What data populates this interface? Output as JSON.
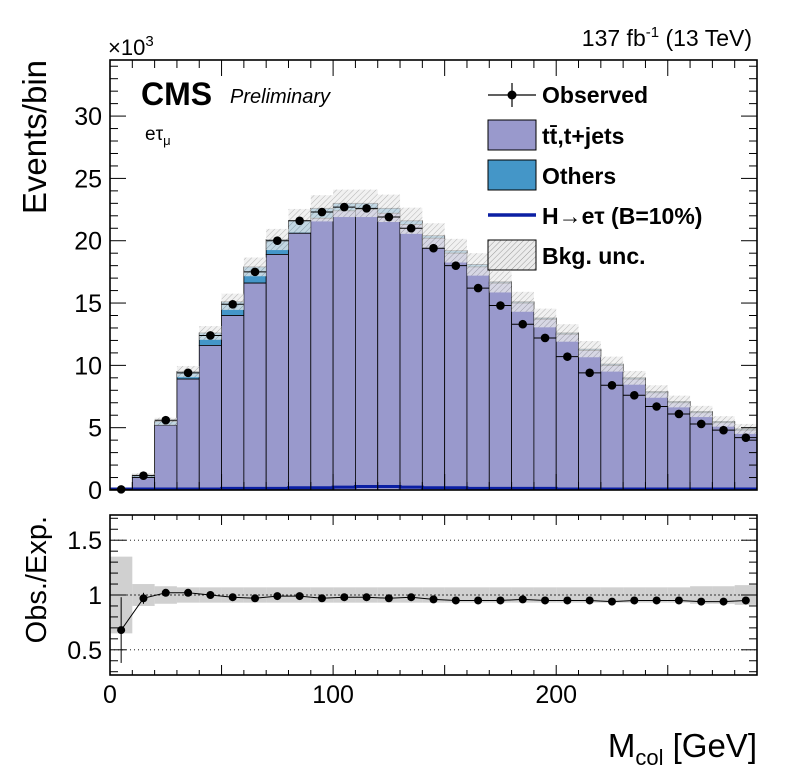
{
  "header": {
    "lumi": "137 fb",
    "lumi_sup": "-1",
    "energy": " (13 TeV)",
    "multiplier_prefix": "×10",
    "multiplier_exp": "3"
  },
  "labels": {
    "experiment": "CMS",
    "status": "Preliminary",
    "channel_base": "eτ",
    "channel_sub": "μ"
  },
  "legend": {
    "observed": "Observed",
    "ttbar": "tt̄,t+jets",
    "others": "Others",
    "signal": "H→eτ (B=10%)",
    "unc": "Bkg. unc."
  },
  "colors": {
    "ttbar": "#9999cc",
    "others": "#4496c8",
    "signal": "#0b1fa3",
    "unc": "#c8c8c8",
    "data": "#000000"
  },
  "chart_data": [
    {
      "type": "bar",
      "ylabel": "Events/bin",
      "ylim": [
        0,
        34.5
      ],
      "yticks": [
        0,
        5,
        10,
        15,
        20,
        25,
        30
      ],
      "xlim": [
        0,
        290
      ],
      "bin_width": 10,
      "bin_edges_start": 0,
      "series": [
        {
          "name": "tt̄,t+jets",
          "values": [
            0.05,
            1.0,
            5.2,
            8.9,
            11.6,
            14.0,
            16.6,
            18.9,
            20.6,
            21.8,
            22.4,
            22.5,
            22.2,
            21.3,
            20.2,
            19.0,
            17.9,
            16.6,
            15.0,
            13.7,
            12.5,
            11.2,
            10.0,
            8.9,
            7.8,
            7.0,
            6.2,
            5.4,
            4.8
          ]
        },
        {
          "name": "Others",
          "values": [
            0.05,
            0.2,
            0.3,
            0.6,
            1.0,
            1.1,
            1.3,
            1.2,
            1.0,
            0.8,
            0.6,
            0.5,
            0.4,
            0.3,
            0.2,
            0.2,
            0.2,
            0.1,
            0.1,
            0.1,
            0.1,
            0.1,
            0.1,
            0.1,
            0.1,
            0.1,
            0.1,
            0.1,
            0.1
          ]
        },
        {
          "name": "H→eτ (B=10%)",
          "values": [
            0.0,
            0.0,
            0.0,
            0.0,
            0.0,
            0.05,
            0.05,
            0.05,
            0.1,
            0.1,
            0.15,
            0.2,
            0.2,
            0.15,
            0.1,
            0.1,
            0.05,
            0.05,
            0.05,
            0.05,
            0.0,
            0.0,
            0.0,
            0.0,
            0.0,
            0.0,
            0.0,
            0.0,
            0.0
          ]
        },
        {
          "name": "Observed",
          "values": [
            0.05,
            1.15,
            5.6,
            9.4,
            12.4,
            14.9,
            17.5,
            20.0,
            21.6,
            22.3,
            22.7,
            22.6,
            21.9,
            21.0,
            19.4,
            18.0,
            16.2,
            14.8,
            13.3,
            12.2,
            10.7,
            9.4,
            8.4,
            7.6,
            6.7,
            6.1,
            5.3,
            4.8,
            4.2
          ]
        }
      ],
      "uncertainty": [
        0.1,
        0.15,
        0.3,
        0.45,
        0.55,
        0.65,
        0.75,
        0.85,
        0.95,
        1.05,
        1.1,
        1.1,
        1.1,
        1.05,
        1.0,
        0.95,
        0.9,
        0.85,
        0.8,
        0.75,
        0.7,
        0.65,
        0.6,
        0.55,
        0.5,
        0.47,
        0.45,
        0.42,
        0.4
      ]
    },
    {
      "type": "scatter",
      "xlabel": "M",
      "xlabel_sub": "col",
      "xlabel_unit": " [GeV]",
      "ylabel": "Obs./Exp.",
      "ylim": [
        0.27,
        1.73
      ],
      "yticks": [
        0.5,
        1,
        1.5
      ],
      "ytick_labels": [
        "0.5",
        "1",
        "1.5"
      ],
      "xticks": [
        0,
        100,
        200
      ],
      "xtick_labels": [
        "0",
        "100",
        "200"
      ],
      "ratio": [
        0.68,
        0.97,
        1.02,
        1.02,
        1.0,
        0.98,
        0.97,
        0.99,
        0.99,
        0.97,
        0.98,
        0.98,
        0.97,
        0.98,
        0.96,
        0.95,
        0.95,
        0.95,
        0.96,
        0.95,
        0.95,
        0.95,
        0.94,
        0.95,
        0.95,
        0.95,
        0.94,
        0.94,
        0.95
      ],
      "ratio_err": [
        0.3,
        0.05,
        0.02,
        0.015,
        0.01,
        0.01,
        0.01,
        0.01,
        0.01,
        0.01,
        0.01,
        0.01,
        0.01,
        0.01,
        0.01,
        0.01,
        0.01,
        0.01,
        0.01,
        0.01,
        0.01,
        0.015,
        0.015,
        0.015,
        0.015,
        0.015,
        0.02,
        0.02,
        0.02
      ],
      "unc_band": [
        0.35,
        0.1,
        0.08,
        0.07,
        0.07,
        0.07,
        0.07,
        0.07,
        0.07,
        0.07,
        0.07,
        0.07,
        0.07,
        0.07,
        0.07,
        0.07,
        0.07,
        0.07,
        0.07,
        0.07,
        0.07,
        0.07,
        0.07,
        0.07,
        0.07,
        0.07,
        0.08,
        0.08,
        0.09
      ],
      "grid_lines": [
        0.5,
        1.5
      ]
    }
  ]
}
